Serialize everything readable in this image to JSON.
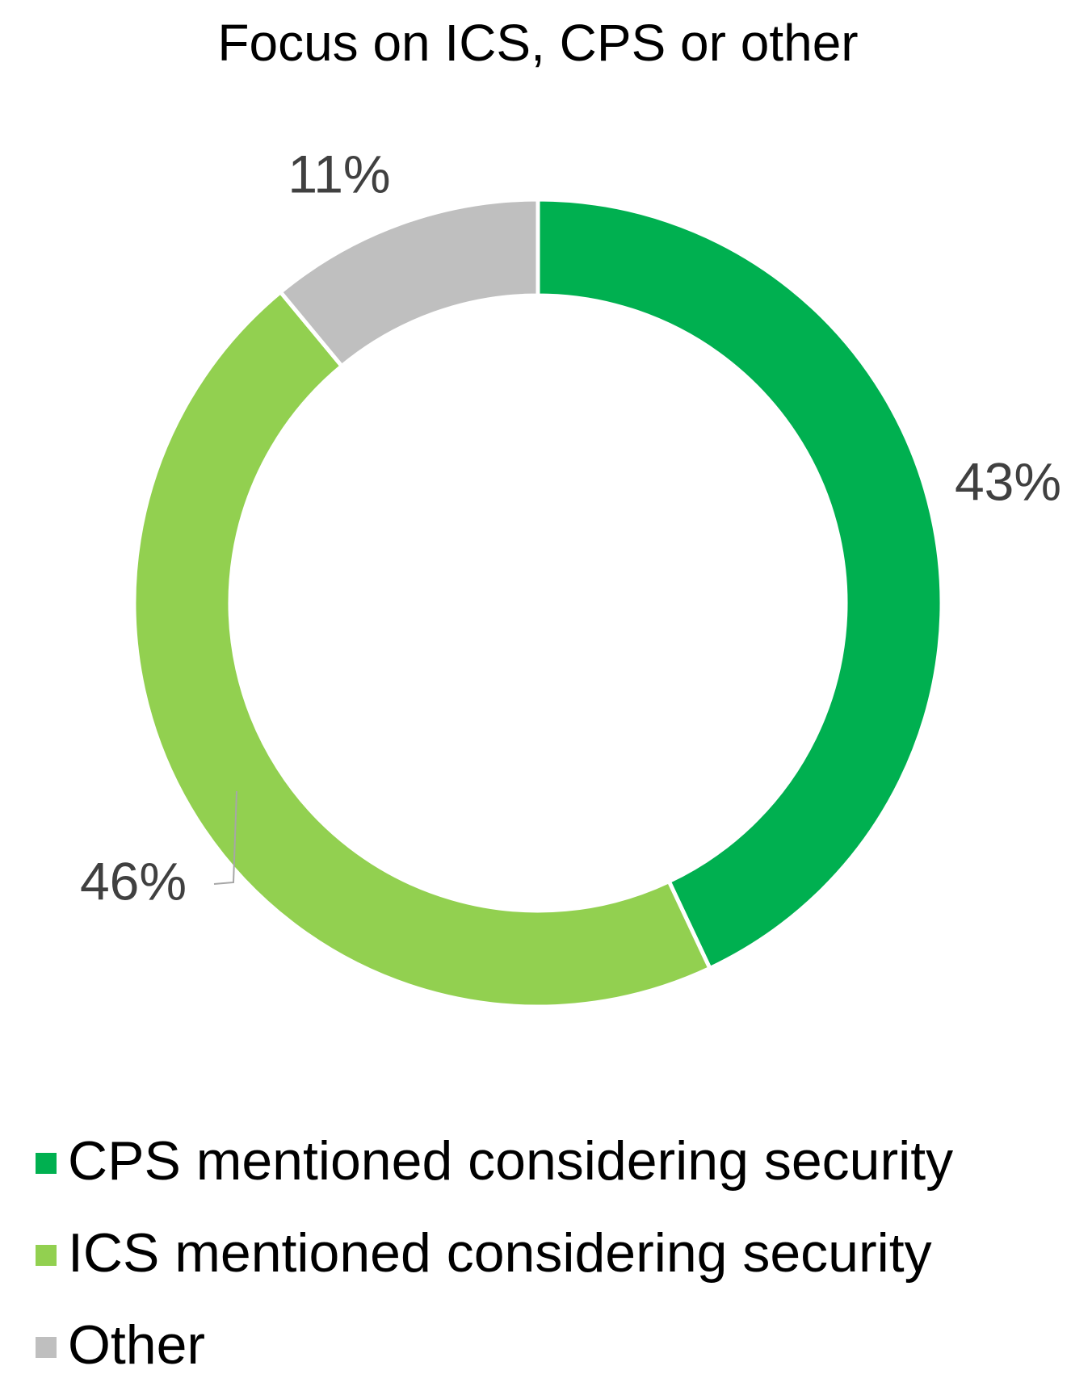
{
  "chart_data": {
    "type": "donut",
    "title": "Focus on ICS, CPS or other",
    "categories": [
      "CPS mentioned considering security",
      "ICS mentioned considering security",
      "Other"
    ],
    "values": [
      43,
      46,
      11
    ],
    "value_labels": [
      "43%",
      "46%",
      "11%"
    ],
    "colors": [
      "#00b050",
      "#92d050",
      "#bfbfbf"
    ],
    "legend": "bottom"
  }
}
